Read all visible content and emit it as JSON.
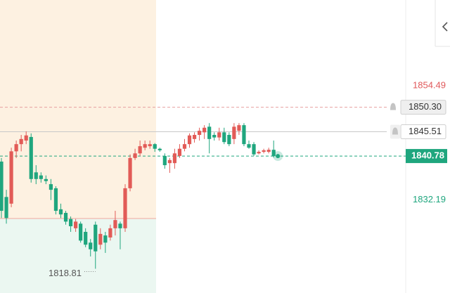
{
  "chart_data": {
    "type": "candlestick",
    "ylim": [
      1814.08,
      1871.2
    ],
    "up_color": "#e25b57",
    "down_color": "#1fa67e",
    "open": [
      1839.7,
      1832.8,
      1831.5,
      1841.7,
      1843.1,
      1843.8,
      1844.5,
      1837.6,
      1837.0,
      1836.3,
      1835.3,
      1834.5,
      1830.4,
      1829.7,
      1828.5,
      1826.7,
      1827.6,
      1826.0,
      1823.9,
      1827.4,
      1823.5,
      1825.3,
      1824.9,
      1826.7,
      1827.6,
      1826.7,
      1834.5,
      1840.4,
      1841.3,
      1842.4,
      1842.7,
      1843.1,
      1842.2,
      1840.8,
      1839.4,
      1839.4,
      1840.8,
      1842.2,
      1843.1,
      1844.1,
      1844.9,
      1845.4,
      1846.5,
      1844.9,
      1844.4,
      1845.4,
      1844.9,
      1844.1,
      1845.7,
      1846.8,
      1843.1,
      1843.1,
      1841.3,
      1841.6,
      1841.6,
      1842.0
    ],
    "high": [
      1840.4,
      1834.2,
      1842.4,
      1843.8,
      1844.9,
      1845.6,
      1845.2,
      1839.0,
      1837.6,
      1837.0,
      1836.3,
      1834.9,
      1831.5,
      1830.1,
      1829.0,
      1828.5,
      1828.0,
      1826.7,
      1824.6,
      1828.0,
      1826.7,
      1826.0,
      1827.4,
      1830.1,
      1828.0,
      1835.3,
      1841.1,
      1842.2,
      1843.8,
      1843.8,
      1843.8,
      1843.3,
      1842.4,
      1841.3,
      1840.4,
      1842.2,
      1843.1,
      1844.1,
      1845.2,
      1845.4,
      1846.3,
      1846.8,
      1847.2,
      1845.4,
      1846.3,
      1846.3,
      1845.4,
      1847.2,
      1847.2,
      1847.2,
      1843.8,
      1843.5,
      1841.9,
      1842.2,
      1842.4,
      1843.8
    ],
    "low": [
      1828.7,
      1827.6,
      1830.8,
      1840.4,
      1841.7,
      1843.1,
      1835.6,
      1835.3,
      1835.6,
      1835.3,
      1832.2,
      1829.4,
      1828.7,
      1827.4,
      1826.0,
      1826.0,
      1823.9,
      1823.0,
      1821.2,
      1818.81,
      1822.6,
      1821.9,
      1824.3,
      1825.3,
      1822.6,
      1826.0,
      1833.9,
      1840.0,
      1840.8,
      1841.9,
      1842.2,
      1841.6,
      1841.6,
      1838.3,
      1837.5,
      1838.3,
      1840.4,
      1841.7,
      1842.4,
      1843.4,
      1843.8,
      1844.1,
      1841.3,
      1843.8,
      1843.8,
      1843.1,
      1842.7,
      1843.1,
      1844.9,
      1842.7,
      1842.2,
      1840.8,
      1841.1,
      1841.3,
      1841.3,
      1840.5
    ],
    "close": [
      1830.1,
      1828.7,
      1841.7,
      1843.1,
      1844.1,
      1844.8,
      1836.3,
      1836.3,
      1836.3,
      1835.9,
      1834.2,
      1830.1,
      1829.4,
      1828.0,
      1827.1,
      1828.0,
      1824.3,
      1823.5,
      1822.6,
      1822.2,
      1825.6,
      1823.9,
      1826.7,
      1828.3,
      1826.7,
      1834.5,
      1840.4,
      1841.3,
      1842.7,
      1843.1,
      1843.1,
      1842.2,
      1841.9,
      1839.0,
      1840.0,
      1841.3,
      1842.2,
      1843.1,
      1844.8,
      1844.9,
      1845.7,
      1846.3,
      1844.1,
      1844.4,
      1845.4,
      1843.5,
      1843.1,
      1846.5,
      1846.8,
      1843.1,
      1842.4,
      1841.1,
      1841.6,
      1841.9,
      1842.0,
      1840.78
    ],
    "session_level": 1828.6,
    "low_annotation": 1818.81,
    "price_levels": [
      {
        "value": 1854.49,
        "color": "#e0585a",
        "line": "none",
        "box": "none"
      },
      {
        "value": {
          "value": 1850.3,
          "label": "1850.30"
        },
        "color": "#e8a0a0",
        "line": "dashed",
        "box": "grey"
      },
      {
        "value": 1845.51,
        "color": "#c8c8c8",
        "line": "solid",
        "box": "white"
      },
      {
        "value": 1840.78,
        "color": "#1fa67e",
        "line": "dashed",
        "box": "filled"
      },
      {
        "value": 1832.19,
        "color": "#1fa67e",
        "line": "none",
        "box": "none"
      }
    ]
  }
}
